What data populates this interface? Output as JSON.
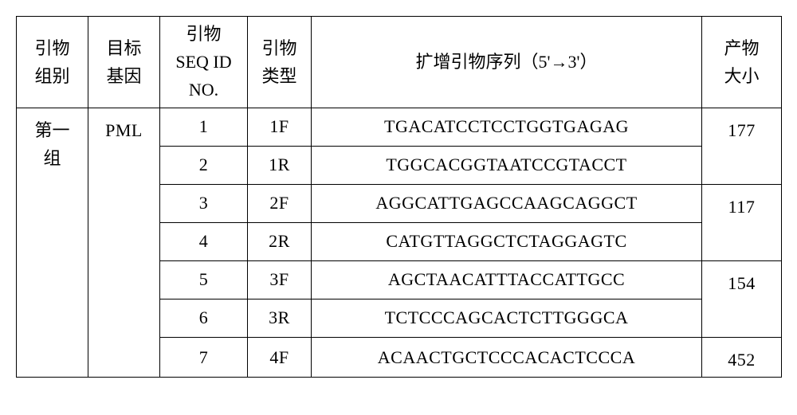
{
  "headers": {
    "col0": "引物\n组别",
    "col1": "目标\n基因",
    "col2": "引物\nSEQ ID\nNO.",
    "col3": "引物\n类型",
    "col4": "扩增引物序列（5'→3'）",
    "col5": "产物\n大小"
  },
  "group_label": "第一\n组",
  "gene_label": "PML",
  "rows": [
    {
      "seqid": "1",
      "type": "1F",
      "sequence": "TGACATCCTCCTGGTGAGAG"
    },
    {
      "seqid": "2",
      "type": "1R",
      "sequence": "TGGCACGGTAATCCGTACCT"
    },
    {
      "seqid": "3",
      "type": "2F",
      "sequence": "AGGCATTGAGCCAAGCAGGCT"
    },
    {
      "seqid": "4",
      "type": "2R",
      "sequence": "CATGTTAGGCTCTAGGAGTC"
    },
    {
      "seqid": "5",
      "type": "3F",
      "sequence": "AGCTAACATTTACCATTGCC"
    },
    {
      "seqid": "6",
      "type": "3R",
      "sequence": "TCTCCCAGCACTCTTGGGCA"
    },
    {
      "seqid": "7",
      "type": "4F",
      "sequence": "ACAACTGCTCCCACACTCCCA"
    }
  ],
  "products": {
    "p1": "177",
    "p2": "117",
    "p3": "154",
    "p4": "452"
  },
  "col_widths": {
    "c0": 90,
    "c1": 90,
    "c2": 110,
    "c3": 80,
    "c4": 490,
    "c5": 100
  }
}
